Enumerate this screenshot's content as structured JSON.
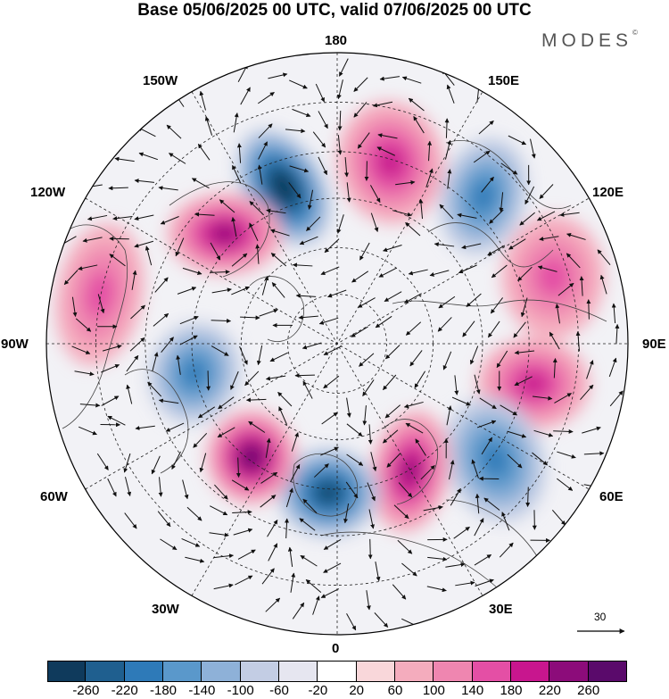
{
  "title": "Base 05/06/2025 00 UTC, valid 07/06/2025 00 UTC",
  "brand": "MODES",
  "brand_mark": "©",
  "lon_labels": {
    "n": "180",
    "s": "0",
    "e": "90E",
    "w": "90W",
    "ne1": "150E",
    "ne2": "120E",
    "nw1": "150W",
    "nw2": "120W",
    "se1": "60E",
    "se2": "30E",
    "sw1": "60W",
    "sw2": "30W"
  },
  "vector_reference": "30",
  "colorbar": {
    "ticks": [
      "-260",
      "-220",
      "-180",
      "-140",
      "-100",
      "-60",
      "-20",
      "20",
      "60",
      "100",
      "140",
      "180",
      "220",
      "260"
    ],
    "colors": [
      "#0f3a5c",
      "#1f5f8f",
      "#2e7ab8",
      "#5a98cb",
      "#8eb1d8",
      "#c3cde4",
      "#e6e6f0",
      "#ffffff",
      "#f9d7da",
      "#f4acbd",
      "#ef86b0",
      "#e44fa5",
      "#c8168e",
      "#8c0c7a",
      "#5a0a6b"
    ]
  },
  "anomalies": [
    {
      "type": "neg",
      "strength": 260,
      "location": "north of Alaska / Beaufort"
    },
    {
      "type": "pos",
      "strength": 180,
      "location": "western Canada"
    },
    {
      "type": "pos",
      "strength": 140,
      "location": "East Siberian Sea"
    },
    {
      "type": "neg",
      "strength": 140,
      "location": "eastern Siberia"
    },
    {
      "type": "pos",
      "strength": 100,
      "location": "central Siberia"
    },
    {
      "type": "pos",
      "strength": 140,
      "location": "western Siberia"
    },
    {
      "type": "neg",
      "strength": 140,
      "location": "Ural / Caspian"
    },
    {
      "type": "pos",
      "strength": 180,
      "location": "Scandinavia"
    },
    {
      "type": "neg",
      "strength": 220,
      "location": "Iceland"
    },
    {
      "type": "pos",
      "strength": 220,
      "location": "Labrador Sea"
    },
    {
      "type": "neg",
      "strength": 140,
      "location": "Hudson Bay"
    },
    {
      "type": "pos",
      "strength": 100,
      "location": "central North America"
    }
  ]
}
